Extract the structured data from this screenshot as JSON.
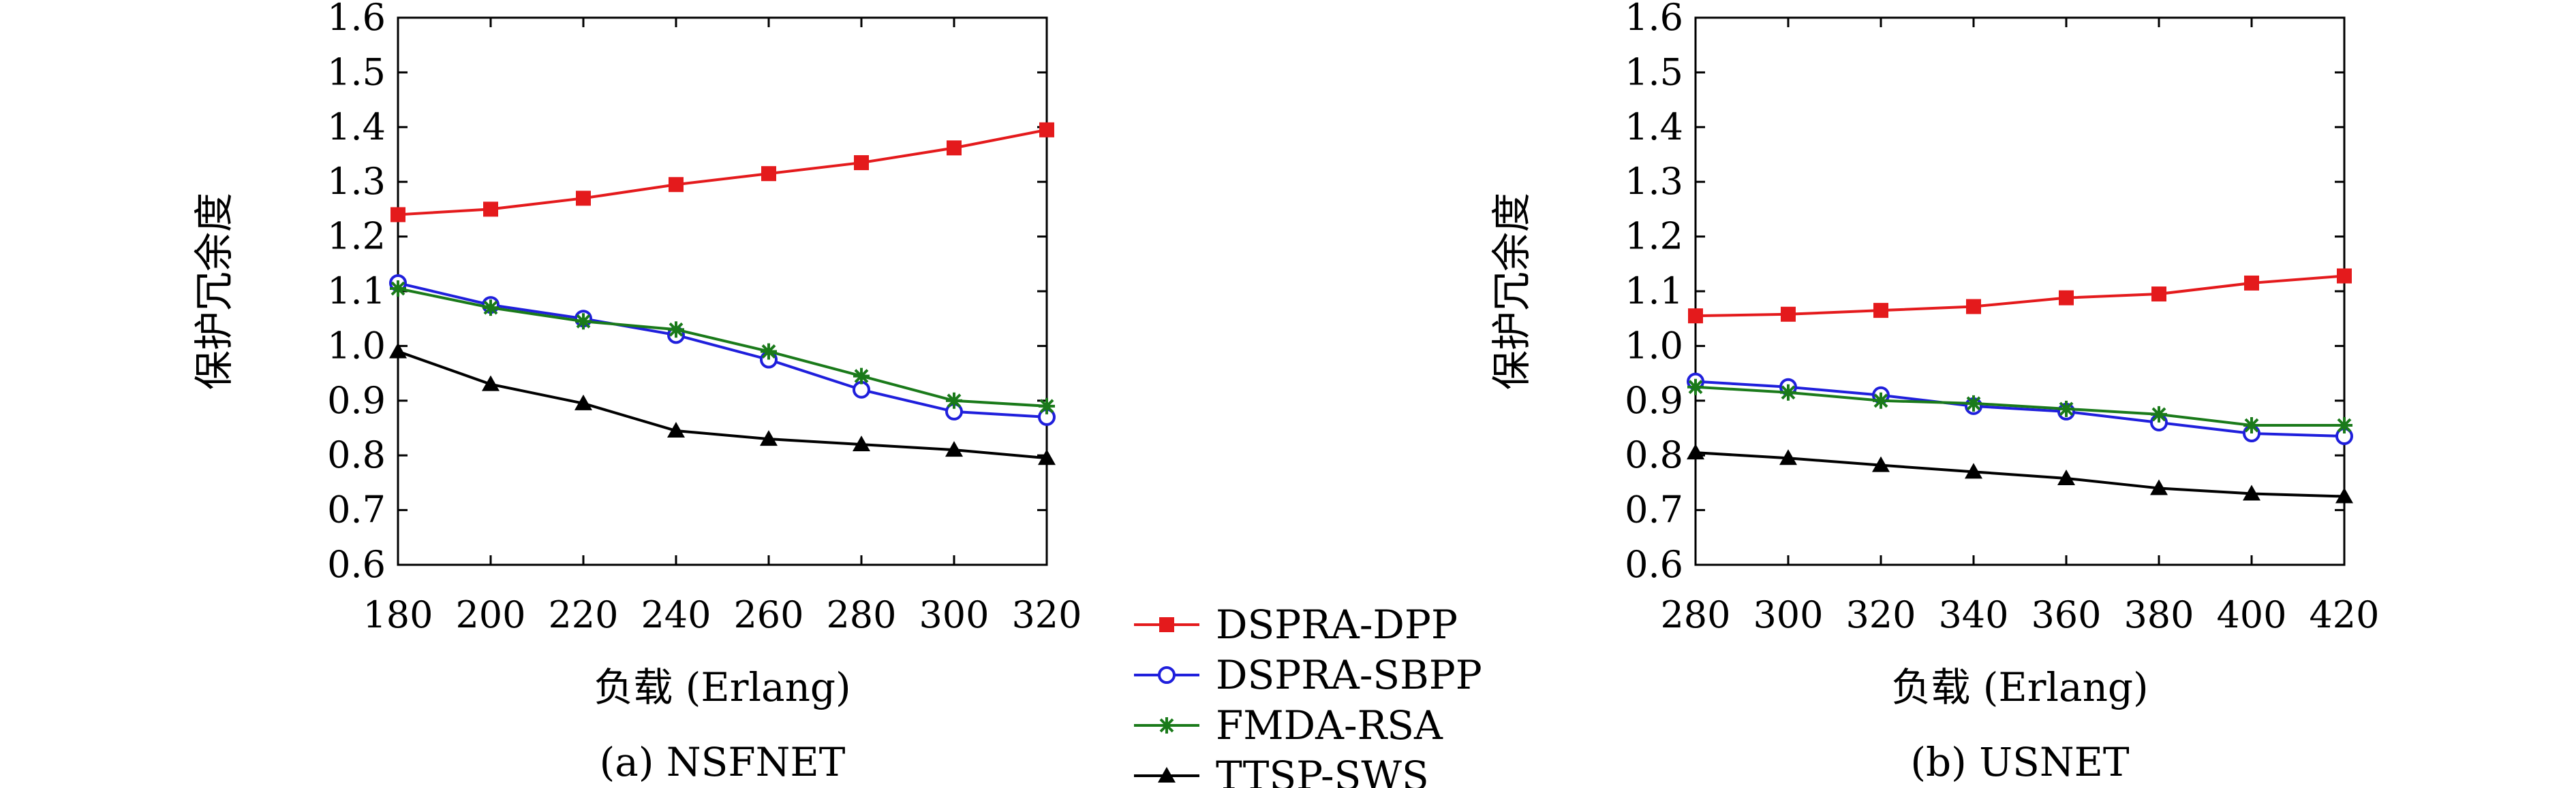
{
  "figure": {
    "legend": [
      {
        "name": "DSPRA-DPP",
        "color": "#e41a1c",
        "marker": "square"
      },
      {
        "name": "DSPRA-SBPP",
        "color": "#1f1fdc",
        "marker": "circle-open"
      },
      {
        "name": "FMDA-RSA",
        "color": "#1a7a1a",
        "marker": "star"
      },
      {
        "name": "TTSP-SWS",
        "color": "#000000",
        "marker": "triangle"
      }
    ]
  },
  "chart_data": [
    {
      "type": "line",
      "caption": "(a) NSFNET",
      "xlabel": "负载 (Erlang)",
      "ylabel": "保护冗余度",
      "x": [
        180,
        200,
        220,
        240,
        260,
        280,
        300,
        320
      ],
      "xlim": [
        180,
        320
      ],
      "ylim": [
        0.6,
        1.6
      ],
      "yticks": [
        "0.6",
        "0.7",
        "0.8",
        "0.9",
        "1.0",
        "1.1",
        "1.2",
        "1.3",
        "1.4",
        "1.5",
        "1.6"
      ],
      "xticks": [
        "180",
        "200",
        "220",
        "240",
        "260",
        "280",
        "300",
        "320"
      ],
      "series": [
        {
          "name": "DSPRA-DPP",
          "values": [
            1.24,
            1.25,
            1.27,
            1.295,
            1.315,
            1.335,
            1.362,
            1.395
          ]
        },
        {
          "name": "DSPRA-SBPP",
          "values": [
            1.115,
            1.075,
            1.05,
            1.02,
            0.975,
            0.92,
            0.88,
            0.87
          ]
        },
        {
          "name": "FMDA-RSA",
          "values": [
            1.105,
            1.07,
            1.045,
            1.03,
            0.99,
            0.945,
            0.9,
            0.89
          ]
        },
        {
          "name": "TTSP-SWS",
          "values": [
            0.99,
            0.93,
            0.895,
            0.845,
            0.83,
            0.82,
            0.81,
            0.795
          ]
        }
      ]
    },
    {
      "type": "line",
      "caption": "(b) USNET",
      "xlabel": "负载 (Erlang)",
      "ylabel": "保护冗余度",
      "x": [
        280,
        300,
        320,
        340,
        360,
        380,
        400,
        420
      ],
      "xlim": [
        280,
        420
      ],
      "ylim": [
        0.6,
        1.6
      ],
      "yticks": [
        "0.6",
        "0.7",
        "0.8",
        "0.9",
        "1.0",
        "1.1",
        "1.2",
        "1.3",
        "1.4",
        "1.5",
        "1.6"
      ],
      "xticks": [
        "280",
        "300",
        "320",
        "340",
        "360",
        "380",
        "400",
        "420"
      ],
      "series": [
        {
          "name": "DSPRA-DPP",
          "values": [
            1.055,
            1.058,
            1.065,
            1.072,
            1.088,
            1.095,
            1.115,
            1.128
          ]
        },
        {
          "name": "DSPRA-SBPP",
          "values": [
            0.935,
            0.925,
            0.91,
            0.89,
            0.88,
            0.86,
            0.84,
            0.835
          ]
        },
        {
          "name": "FMDA-RSA",
          "values": [
            0.925,
            0.915,
            0.9,
            0.895,
            0.885,
            0.875,
            0.855,
            0.855
          ]
        },
        {
          "name": "TTSP-SWS",
          "values": [
            0.805,
            0.795,
            0.782,
            0.77,
            0.758,
            0.74,
            0.73,
            0.725
          ]
        }
      ]
    }
  ]
}
